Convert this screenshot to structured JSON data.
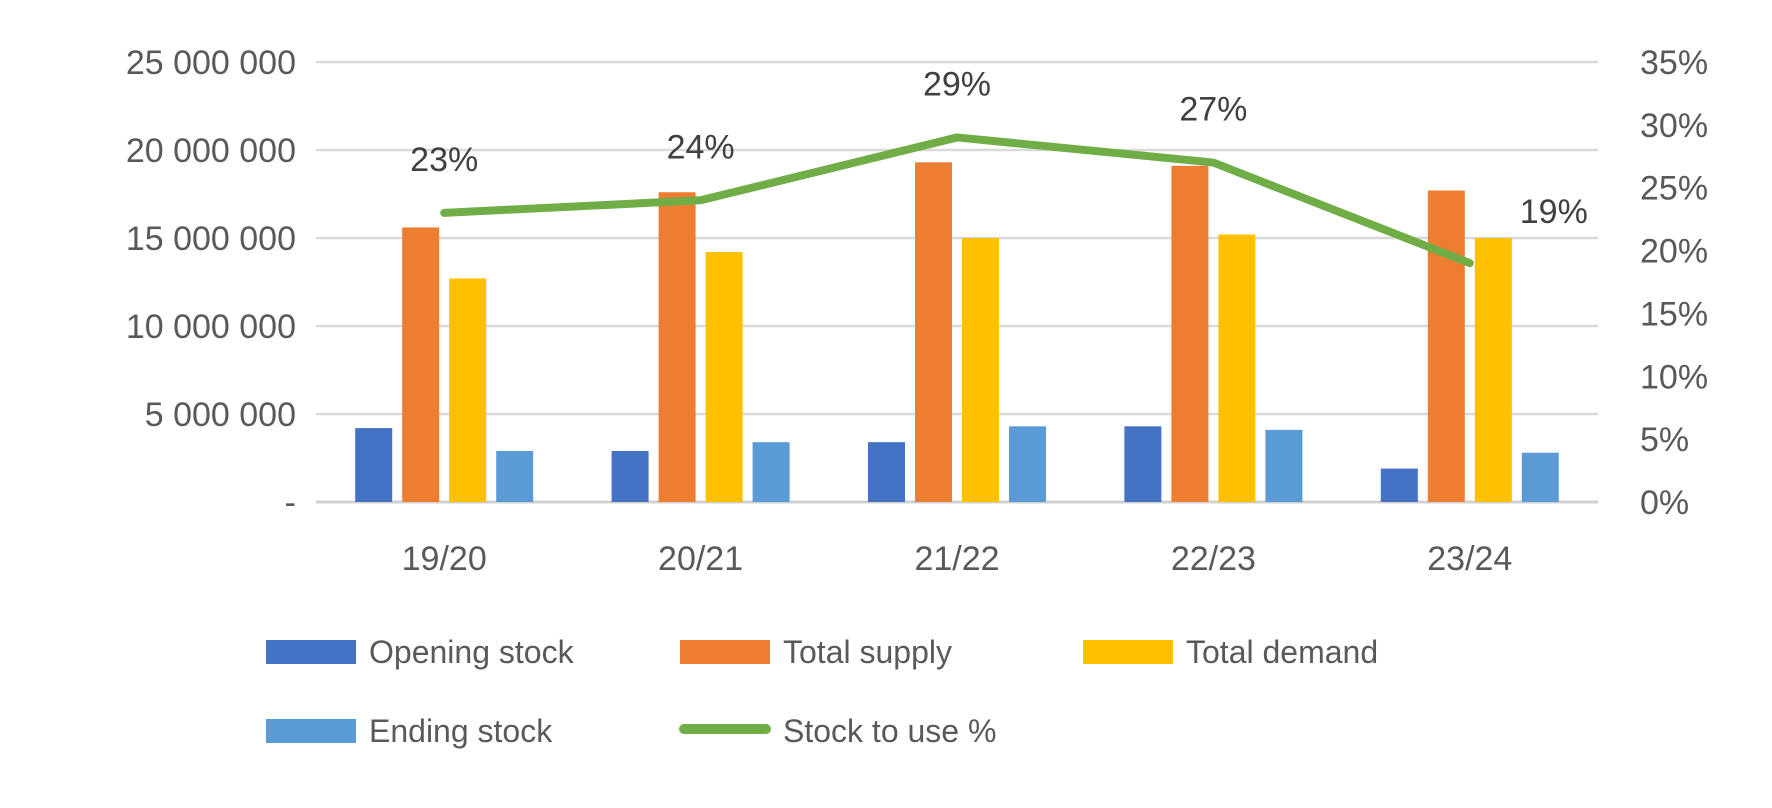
{
  "chart_data": {
    "type": "bar",
    "categories": [
      "19/20",
      "20/21",
      "21/22",
      "22/23",
      "23/24"
    ],
    "series": [
      {
        "name": "Opening stock",
        "kind": "bar",
        "axis": "left",
        "color": "#4472C4",
        "values": [
          4200000,
          2900000,
          3400000,
          4300000,
          1900000
        ]
      },
      {
        "name": "Total supply",
        "kind": "bar",
        "axis": "left",
        "color": "#ED7D31",
        "values": [
          15600000,
          17600000,
          19300000,
          19100000,
          17700000
        ]
      },
      {
        "name": "Total demand",
        "kind": "bar",
        "axis": "left",
        "color": "#FFC000",
        "values": [
          12700000,
          14200000,
          15000000,
          15200000,
          15000000
        ]
      },
      {
        "name": "Ending stock",
        "kind": "bar",
        "axis": "left",
        "color": "#5B9BD5",
        "values": [
          2900000,
          3400000,
          4300000,
          4100000,
          2800000
        ]
      },
      {
        "name": "Stock to use %",
        "kind": "line",
        "axis": "right",
        "color": "#70AD47",
        "values": [
          23,
          24,
          29,
          27,
          19
        ],
        "labels": [
          "23%",
          "24%",
          "29%",
          "27%",
          "19%"
        ]
      }
    ],
    "y_left": {
      "ylim": [
        0,
        25000000
      ],
      "ticks": [
        0,
        5000000,
        10000000,
        15000000,
        20000000,
        25000000
      ],
      "tick_labels": [
        "-",
        "5 000 000",
        "10 000 000",
        "15 000 000",
        "20 000 000",
        "25 000 000"
      ]
    },
    "y_right": {
      "ylim": [
        0,
        35
      ],
      "ticks": [
        0,
        5,
        10,
        15,
        20,
        25,
        30,
        35
      ],
      "tick_labels": [
        "0%",
        "5%",
        "10%",
        "15%",
        "20%",
        "25%",
        "30%",
        "35%"
      ]
    },
    "grid": true,
    "legend_position": "bottom",
    "title": "",
    "xlabel": "",
    "ylabel": ""
  }
}
